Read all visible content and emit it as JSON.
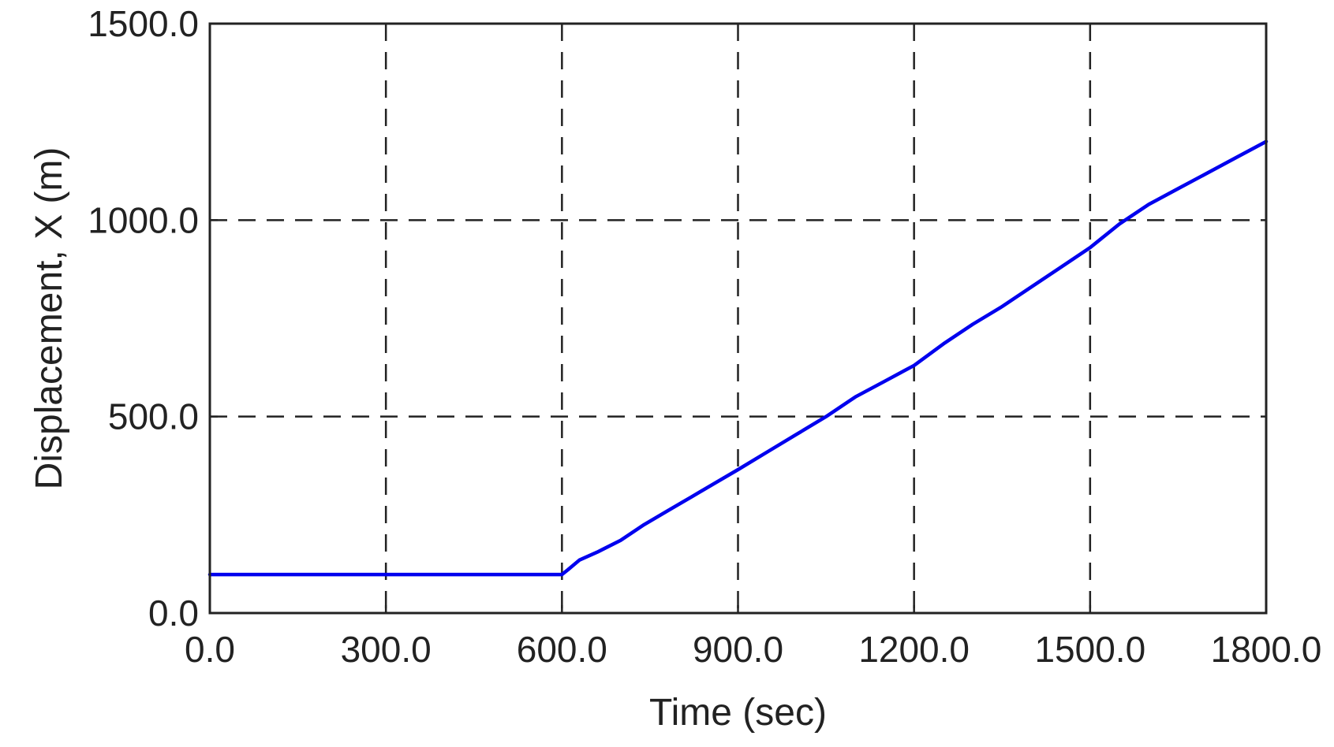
{
  "chart_data": {
    "type": "line",
    "title": "",
    "xlabel": "Time (sec)",
    "ylabel": "Displacement, X (m)",
    "xlim": [
      0,
      1800
    ],
    "ylim": [
      0,
      1500
    ],
    "x_ticks": [
      0,
      300,
      600,
      900,
      1200,
      1500,
      1800
    ],
    "y_ticks": [
      0,
      500,
      1000,
      1500
    ],
    "x_tick_labels": [
      "0.0",
      "300.0",
      "600.0",
      "900.0",
      "1200.0",
      "1500.0",
      "1800.0"
    ],
    "y_tick_labels": [
      "0.0",
      "500.0",
      "1000.0",
      "1500.0"
    ],
    "grid": true,
    "grid_style": "dashed",
    "legend": "none",
    "colors": {
      "series": "#0000ee",
      "grid": "#222222",
      "frame": "#222222"
    },
    "series": [
      {
        "x": [
          0,
          300,
          600,
          610,
          630,
          660,
          700,
          740,
          780,
          820,
          860,
          900,
          950,
          1000,
          1050,
          1100,
          1150,
          1200,
          1250,
          1300,
          1350,
          1400,
          1450,
          1500,
          1550,
          1600,
          1650,
          1700,
          1750,
          1800
        ],
        "values": [
          98,
          98,
          98,
          110,
          135,
          155,
          185,
          225,
          260,
          295,
          330,
          365,
          410,
          455,
          500,
          550,
          590,
          630,
          685,
          735,
          780,
          830,
          880,
          930,
          990,
          1040,
          1080,
          1120,
          1160,
          1200
        ]
      }
    ]
  }
}
